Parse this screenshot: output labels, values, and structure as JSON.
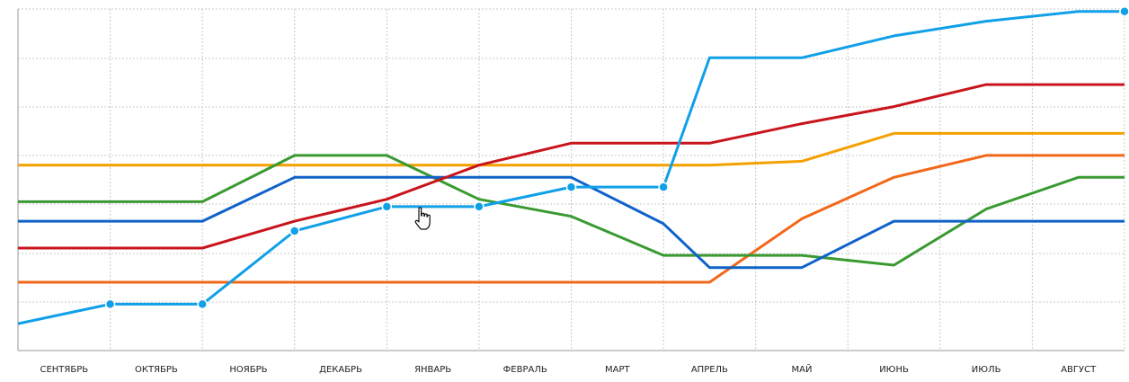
{
  "chart_data": {
    "type": "line",
    "categories": [
      "СЕНТЯБРЬ",
      "ОКТЯБРЬ",
      "НОЯБРЬ",
      "ДЕКАБРЬ",
      "ЯНВАРЬ",
      "ФЕВРАЛЬ",
      "МАРТ",
      "АПРЕЛЬ",
      "МАЙ",
      "ИЮНЬ",
      "ИЮЛЬ",
      "АВГУСТ"
    ],
    "ylim": [
      0,
      7
    ],
    "grid": true,
    "legend": "none",
    "series": [
      {
        "color": "#f4a100",
        "markers": false,
        "x": [
          0,
          1,
          2,
          3,
          4,
          5,
          6,
          7,
          7.5,
          8.5,
          9.5,
          10.5,
          11.5,
          12
        ],
        "y": [
          3.8,
          3.8,
          3.8,
          3.8,
          3.8,
          3.8,
          3.8,
          3.8,
          3.8,
          3.88,
          4.45,
          4.45,
          4.45,
          4.45
        ]
      },
      {
        "color": "#f2681a",
        "markers": false,
        "x": [
          0,
          1,
          2,
          3,
          4,
          5,
          6,
          7,
          7.5,
          8.5,
          9.5,
          10.5,
          11.5,
          12
        ],
        "y": [
          1.4,
          1.4,
          1.4,
          1.4,
          1.4,
          1.4,
          1.4,
          1.4,
          1.4,
          2.7,
          3.55,
          4.0,
          4.0,
          4.0
        ]
      },
      {
        "color": "#3a9a32",
        "markers": false,
        "x": [
          0,
          1,
          2,
          3,
          4,
          5,
          6,
          7,
          7.5,
          8.5,
          9.5,
          10.5,
          11.5,
          12
        ],
        "y": [
          3.05,
          3.05,
          3.05,
          4.0,
          4.0,
          3.1,
          2.75,
          1.95,
          1.95,
          1.95,
          1.75,
          2.9,
          3.55,
          3.55
        ]
      },
      {
        "color": "#0f63c8",
        "markers": false,
        "x": [
          0,
          1,
          2,
          3,
          4,
          5,
          6,
          7,
          7.5,
          8.5,
          9.5,
          10.5,
          11.5,
          12
        ],
        "y": [
          2.65,
          2.65,
          2.65,
          3.55,
          3.55,
          3.55,
          3.55,
          2.6,
          1.7,
          1.7,
          2.65,
          2.65,
          2.65,
          2.65
        ]
      },
      {
        "color": "#c8141c",
        "markers": false,
        "x": [
          0,
          1,
          2,
          3,
          4,
          5,
          6,
          7,
          7.5,
          8.5,
          9.5,
          10.5,
          11.5,
          12
        ],
        "y": [
          2.1,
          2.1,
          2.1,
          2.65,
          3.1,
          3.8,
          4.25,
          4.25,
          4.25,
          4.65,
          5.0,
          5.45,
          5.45,
          5.45
        ]
      },
      {
        "color": "#10a0e8",
        "markers": true,
        "x": [
          0,
          1,
          2,
          3,
          4,
          5,
          6,
          7,
          7.5,
          8.5,
          9.5,
          10.5,
          11.5,
          12
        ],
        "y": [
          0.55,
          0.95,
          0.95,
          2.45,
          2.95,
          2.95,
          3.35,
          3.35,
          6.0,
          6.0,
          6.45,
          6.75,
          6.95,
          6.95
        ]
      }
    ]
  },
  "cursor": {
    "icon": "hand-pointer-icon"
  }
}
